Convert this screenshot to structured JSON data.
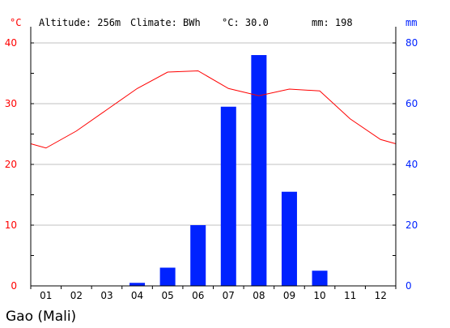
{
  "header": {
    "altitude": "Altitude: 256m",
    "climate": "Climate: BWh",
    "temp": "°C: 30.0",
    "precip": "mm: 198"
  },
  "caption": "Gao (Mali)",
  "colors": {
    "temperature": "#ff0000",
    "precipitation": "#0022ff",
    "grid": "#c0c0c0",
    "axis": "#000000"
  },
  "chart_data": {
    "type": "bar",
    "categories": [
      "01",
      "02",
      "03",
      "04",
      "05",
      "06",
      "07",
      "08",
      "09",
      "10",
      "11",
      "12"
    ],
    "series": [
      {
        "unit": "mm",
        "type": "bar",
        "axis": "right",
        "values": [
          0,
          0,
          0,
          1,
          6,
          20,
          59,
          76,
          31,
          5,
          0,
          0
        ]
      },
      {
        "unit": "°C",
        "type": "line",
        "axis": "left",
        "values": [
          22.7,
          25.5,
          29.0,
          32.5,
          35.2,
          35.4,
          32.5,
          31.3,
          32.4,
          32.1,
          27.5,
          24.1
        ],
        "edge_start": 23.4,
        "edge_end": 23.4
      }
    ],
    "left_axis": {
      "label": "°C",
      "ticks": [
        0,
        10,
        20,
        30,
        40
      ],
      "ylim": [
        0,
        40
      ]
    },
    "right_axis": {
      "label": "mm",
      "ticks": [
        0,
        20,
        40,
        60,
        80
      ],
      "ylim": [
        0,
        80
      ]
    },
    "grid": true
  }
}
